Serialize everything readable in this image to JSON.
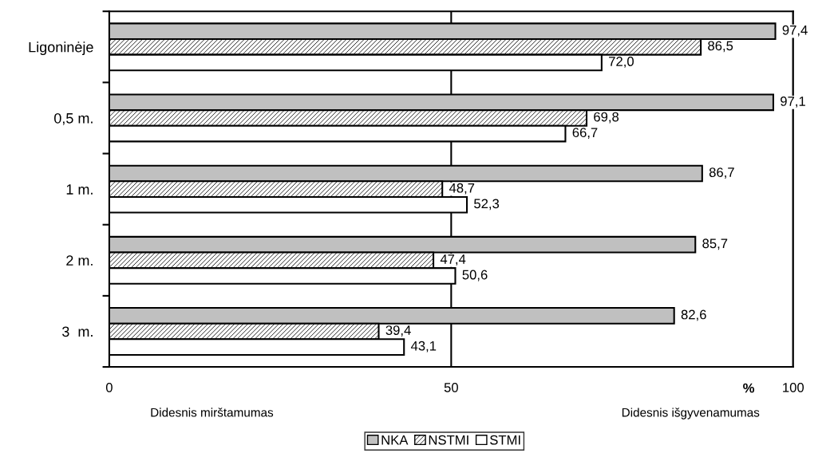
{
  "chart_data": {
    "type": "bar",
    "orientation": "horizontal",
    "categories": [
      "Ligoninėje",
      "0,5 m.",
      "1 m.",
      "2 m.",
      "3  m."
    ],
    "series": [
      {
        "name": "NKA",
        "color": "#c0c0c0",
        "values": [
          97.4,
          97.1,
          86.7,
          85.7,
          82.6
        ],
        "value_labels": [
          "97,4",
          "97,1",
          "86,7",
          "85,7",
          "82,6"
        ]
      },
      {
        "name": "NSTMI",
        "color": "#000000",
        "values": [
          86.5,
          69.8,
          48.7,
          47.4,
          39.4
        ],
        "value_labels": [
          "86,5",
          "69,8",
          "48,7",
          "47,4",
          "39,4"
        ]
      },
      {
        "name": "STMI",
        "color": "#ffffff",
        "values": [
          72.0,
          66.7,
          52.3,
          50.6,
          43.1
        ],
        "value_labels": [
          "72,0",
          "66,7",
          "52,3",
          "50,6",
          "43,1"
        ]
      }
    ],
    "xlim": [
      0,
      100
    ],
    "xticks": [
      0,
      50,
      100
    ],
    "xlabel": "%",
    "annotations": [
      "Didesnis mirštamumas",
      "Didesnis išgyvenamumas"
    ],
    "grid": "x",
    "legend": "bottom"
  }
}
